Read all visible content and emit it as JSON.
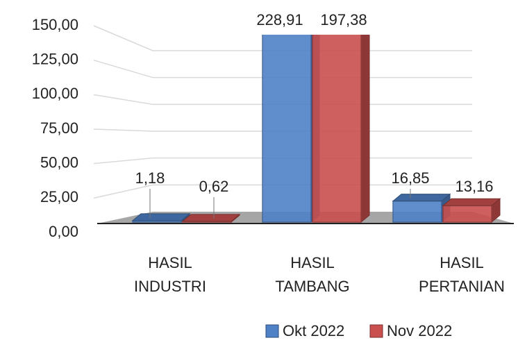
{
  "chart_data": {
    "type": "bar3d",
    "categories": [
      "HASIL INDUSTRI",
      "HASIL TAMBANG",
      "HASIL PERTANIAN"
    ],
    "series": [
      {
        "name": "Okt 2022",
        "color": "#4f81c7",
        "values": [
          1.18,
          228.91,
          16.85
        ],
        "value_labels": [
          "1,18",
          "228,91",
          "16,85"
        ]
      },
      {
        "name": "Nov 2022",
        "color": "#c9504f",
        "values": [
          0.62,
          197.38,
          13.16
        ],
        "value_labels": [
          "0,62",
          "197,38",
          "13,16"
        ]
      }
    ],
    "ylim": [
      0,
      150
    ],
    "yticks": [
      {
        "value": 0,
        "label": "0,00"
      },
      {
        "value": 25,
        "label": "25,00"
      },
      {
        "value": 50,
        "label": "50,00"
      },
      {
        "value": 75,
        "label": "75,00"
      },
      {
        "value": 100,
        "label": "100,00"
      },
      {
        "value": 125,
        "label": "125,00"
      },
      {
        "value": 150,
        "label": "150,00"
      }
    ],
    "grid": true,
    "legend": "bottom"
  }
}
